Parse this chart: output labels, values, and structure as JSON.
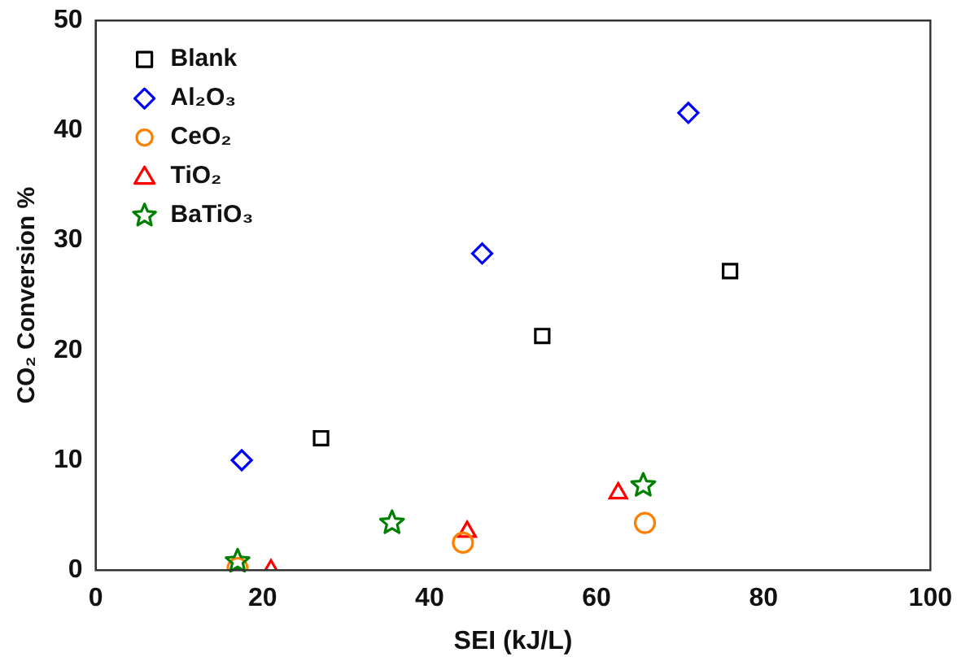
{
  "chart_data": {
    "type": "scatter",
    "xlabel": "SEI (kJ/L)",
    "ylabel": "CO₂ Conversion %",
    "xlim": [
      0,
      100
    ],
    "xticks": [
      0,
      20,
      40,
      60,
      80,
      100
    ],
    "ylim": [
      0,
      50
    ],
    "yticks": [
      0,
      10,
      20,
      30,
      40,
      50
    ],
    "grid": false,
    "legend": "top left",
    "series": [
      {
        "name": "Blank",
        "color": "#000000",
        "marker": "square",
        "x": [
          27,
          53.5,
          76
        ],
        "values": [
          12,
          21.3,
          27.2
        ]
      },
      {
        "name": "Al₂O₃",
        "color": "#0000ff",
        "marker": "diamond",
        "x": [
          17.5,
          46.3,
          71
        ],
        "values": [
          10,
          28.8,
          41.6
        ]
      },
      {
        "name": "CeO₂",
        "color": "#ff8000",
        "marker": "circle",
        "x": [
          17,
          44,
          65.8
        ],
        "values": [
          0.2,
          2.5,
          4.3
        ]
      },
      {
        "name": "TiO₂",
        "color": "#ff0000",
        "marker": "triangle",
        "x": [
          21,
          44.5,
          62.6
        ],
        "values": [
          0,
          3.5,
          7
        ]
      },
      {
        "name": "BaTiO₃",
        "color": "#008000",
        "marker": "star",
        "x": [
          17,
          35.5,
          65.6
        ],
        "values": [
          0.8,
          4.3,
          7.7
        ]
      }
    ]
  }
}
